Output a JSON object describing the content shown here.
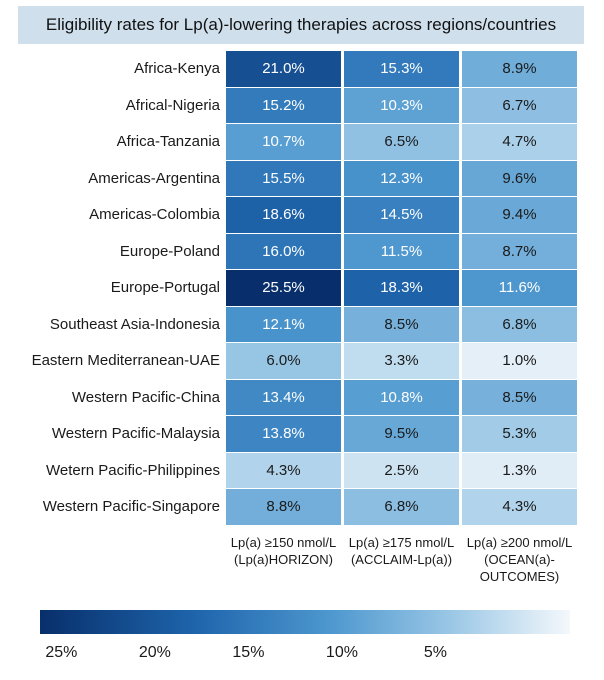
{
  "chart_data": {
    "type": "heatmap",
    "title": "Eligibility rates for Lp(a)-lowering therapies across regions/countries",
    "rows": [
      "Africa-Kenya",
      "Africal-Nigeria",
      "Africa-Tanzania",
      "Americas-Argentina",
      "Americas-Colombia",
      "Europe-Poland",
      "Europe-Portugal",
      "Southeast Asia-Indonesia",
      "Eastern Mediterranean-UAE",
      "Western Pacific-China",
      "Western Pacific-Malaysia",
      "Wetern Pacific-Philippines",
      "Western Pacific-Singapore"
    ],
    "columns": [
      {
        "lines": [
          "Lp(a) ≥150 nmol/L",
          "(Lp(a)HORIZON)"
        ]
      },
      {
        "lines": [
          "Lp(a) ≥175 nmol/L",
          "(ACCLAIM-Lp(a))"
        ]
      },
      {
        "lines": [
          "Lp(a) ≥200 nmol/L",
          "(OCEAN(a)-",
          "OUTCOMES)"
        ]
      }
    ],
    "values": [
      [
        21.0,
        15.3,
        8.9
      ],
      [
        15.2,
        10.3,
        6.7
      ],
      [
        10.7,
        6.5,
        4.7
      ],
      [
        15.5,
        12.3,
        9.6
      ],
      [
        18.6,
        14.5,
        9.4
      ],
      [
        16.0,
        11.5,
        8.7
      ],
      [
        25.5,
        18.3,
        11.6
      ],
      [
        12.1,
        8.5,
        6.8
      ],
      [
        6.0,
        3.3,
        1.0
      ],
      [
        13.4,
        10.8,
        8.5
      ],
      [
        13.8,
        9.5,
        5.3
      ],
      [
        4.3,
        2.5,
        1.3
      ],
      [
        8.8,
        6.8,
        4.3
      ]
    ],
    "value_format": "%",
    "color_scale": {
      "min": 0,
      "max": 25.5,
      "ticks": [
        "25%",
        "20%",
        "15%",
        "10%",
        "5%"
      ],
      "tick_values": [
        25,
        20,
        15,
        10,
        5
      ],
      "direction": "high-to-low left-to-right",
      "colors": {
        "high": "#082f6b",
        "mid": "#4e98cf",
        "low": "#f4f8fc"
      }
    }
  }
}
